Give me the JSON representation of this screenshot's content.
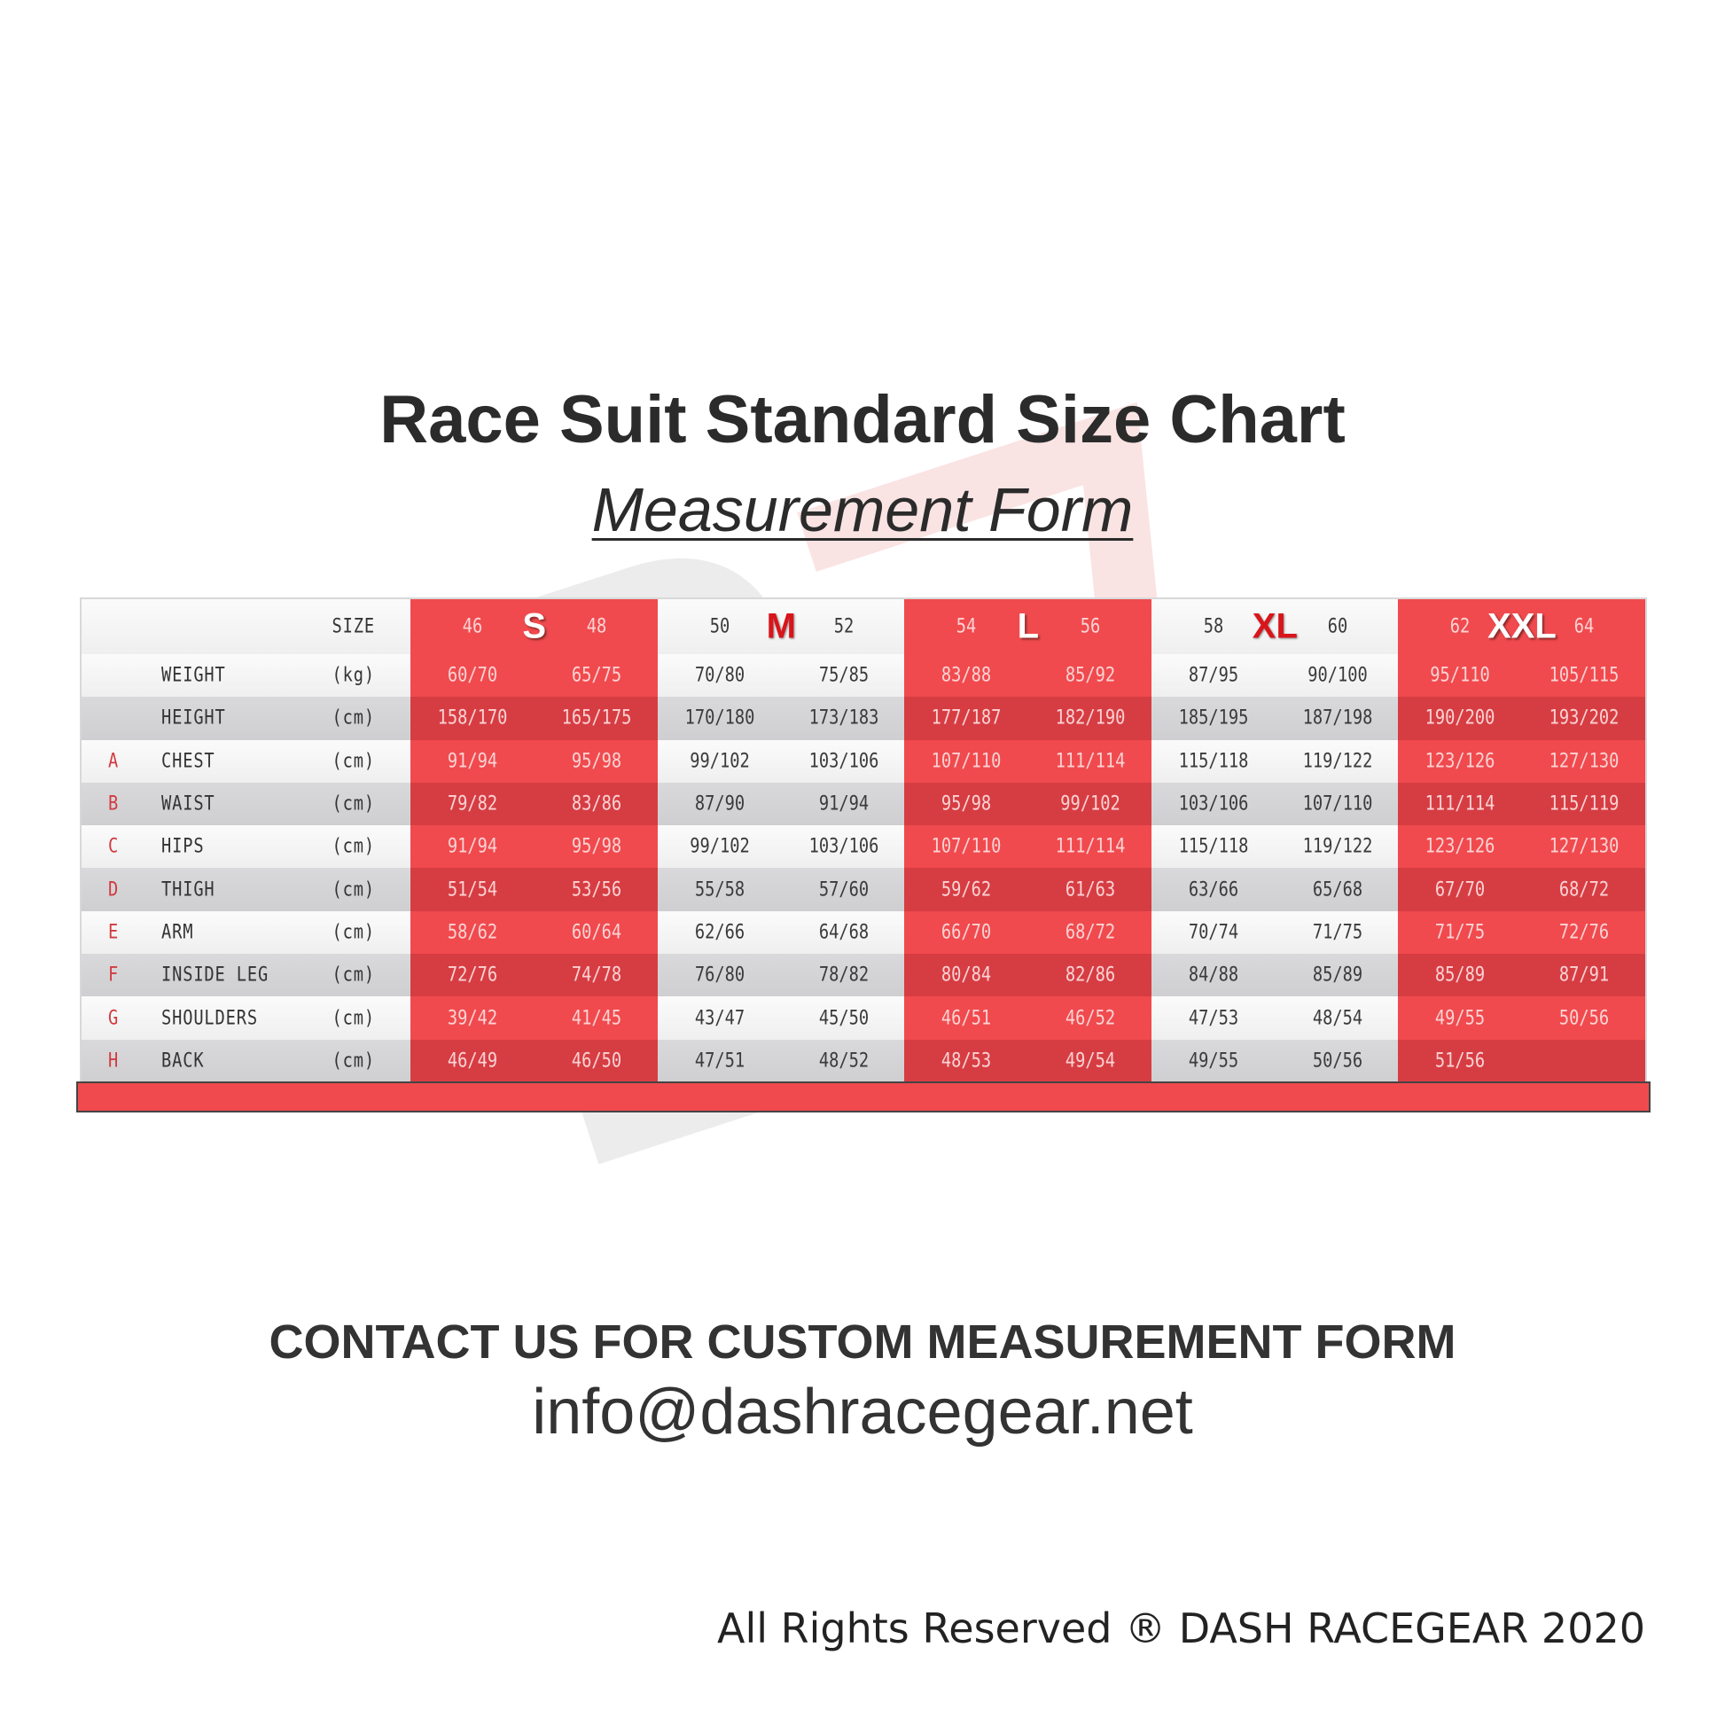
{
  "title": "Race Suit Standard Size Chart",
  "subtitle": "Measurement Form",
  "watermark_logo": "DASH RACEGEAR",
  "colors": {
    "red_light": "#f04a4e",
    "red_dark": "#d63d43",
    "size_letter_red": "#d9141b",
    "text": "#2b2b2b"
  },
  "table": {
    "size_label": "SIZE",
    "groups": [
      {
        "size": "S",
        "nums": [
          "46",
          "48"
        ],
        "style": "red"
      },
      {
        "size": "M",
        "nums": [
          "50",
          "52"
        ],
        "style": "gray"
      },
      {
        "size": "L",
        "nums": [
          "54",
          "56"
        ],
        "style": "red"
      },
      {
        "size": "XL",
        "nums": [
          "58",
          "60"
        ],
        "style": "gray"
      },
      {
        "size": "XXL",
        "nums": [
          "62",
          "64"
        ],
        "style": "red"
      }
    ],
    "rows": [
      {
        "letter": "",
        "name": "WEIGHT",
        "unit": "(kg)",
        "values": [
          "60/70",
          "65/75",
          "70/80",
          "75/85",
          "83/88",
          "85/92",
          "87/95",
          "90/100",
          "95/110",
          "105/115"
        ]
      },
      {
        "letter": "",
        "name": "HEIGHT",
        "unit": "(cm)",
        "values": [
          "158/170",
          "165/175",
          "170/180",
          "173/183",
          "177/187",
          "182/190",
          "185/195",
          "187/198",
          "190/200",
          "193/202"
        ]
      },
      {
        "letter": "A",
        "name": "CHEST",
        "unit": "(cm)",
        "values": [
          "91/94",
          "95/98",
          "99/102",
          "103/106",
          "107/110",
          "111/114",
          "115/118",
          "119/122",
          "123/126",
          "127/130"
        ]
      },
      {
        "letter": "B",
        "name": "WAIST",
        "unit": "(cm)",
        "values": [
          "79/82",
          "83/86",
          "87/90",
          "91/94",
          "95/98",
          "99/102",
          "103/106",
          "107/110",
          "111/114",
          "115/119"
        ]
      },
      {
        "letter": "C",
        "name": "HIPS",
        "unit": "(cm)",
        "values": [
          "91/94",
          "95/98",
          "99/102",
          "103/106",
          "107/110",
          "111/114",
          "115/118",
          "119/122",
          "123/126",
          "127/130"
        ]
      },
      {
        "letter": "D",
        "name": "THIGH",
        "unit": "(cm)",
        "values": [
          "51/54",
          "53/56",
          "55/58",
          "57/60",
          "59/62",
          "61/63",
          "63/66",
          "65/68",
          "67/70",
          "68/72"
        ]
      },
      {
        "letter": "E",
        "name": "ARM",
        "unit": "(cm)",
        "values": [
          "58/62",
          "60/64",
          "62/66",
          "64/68",
          "66/70",
          "68/72",
          "70/74",
          "71/75",
          "71/75",
          "72/76"
        ]
      },
      {
        "letter": "F",
        "name": "INSIDE LEG",
        "unit": "(cm)",
        "values": [
          "72/76",
          "74/78",
          "76/80",
          "78/82",
          "80/84",
          "82/86",
          "84/88",
          "85/89",
          "85/89",
          "87/91"
        ]
      },
      {
        "letter": "G",
        "name": "SHOULDERS",
        "unit": "(cm)",
        "values": [
          "39/42",
          "41/45",
          "43/47",
          "45/50",
          "46/51",
          "46/52",
          "47/53",
          "48/54",
          "49/55",
          "50/56"
        ]
      },
      {
        "letter": "H",
        "name": "BACK",
        "unit": "(cm)",
        "values": [
          "46/49",
          "46/50",
          "47/51",
          "48/52",
          "48/53",
          "49/54",
          "49/55",
          "50/56",
          "51/56",
          ""
        ]
      }
    ]
  },
  "contact": "CONTACT US FOR CUSTOM MEASUREMENT FORM",
  "email": "info@dashracegear.net",
  "footer": "All Rights Reserved ® DASH RACEGEAR 2020"
}
